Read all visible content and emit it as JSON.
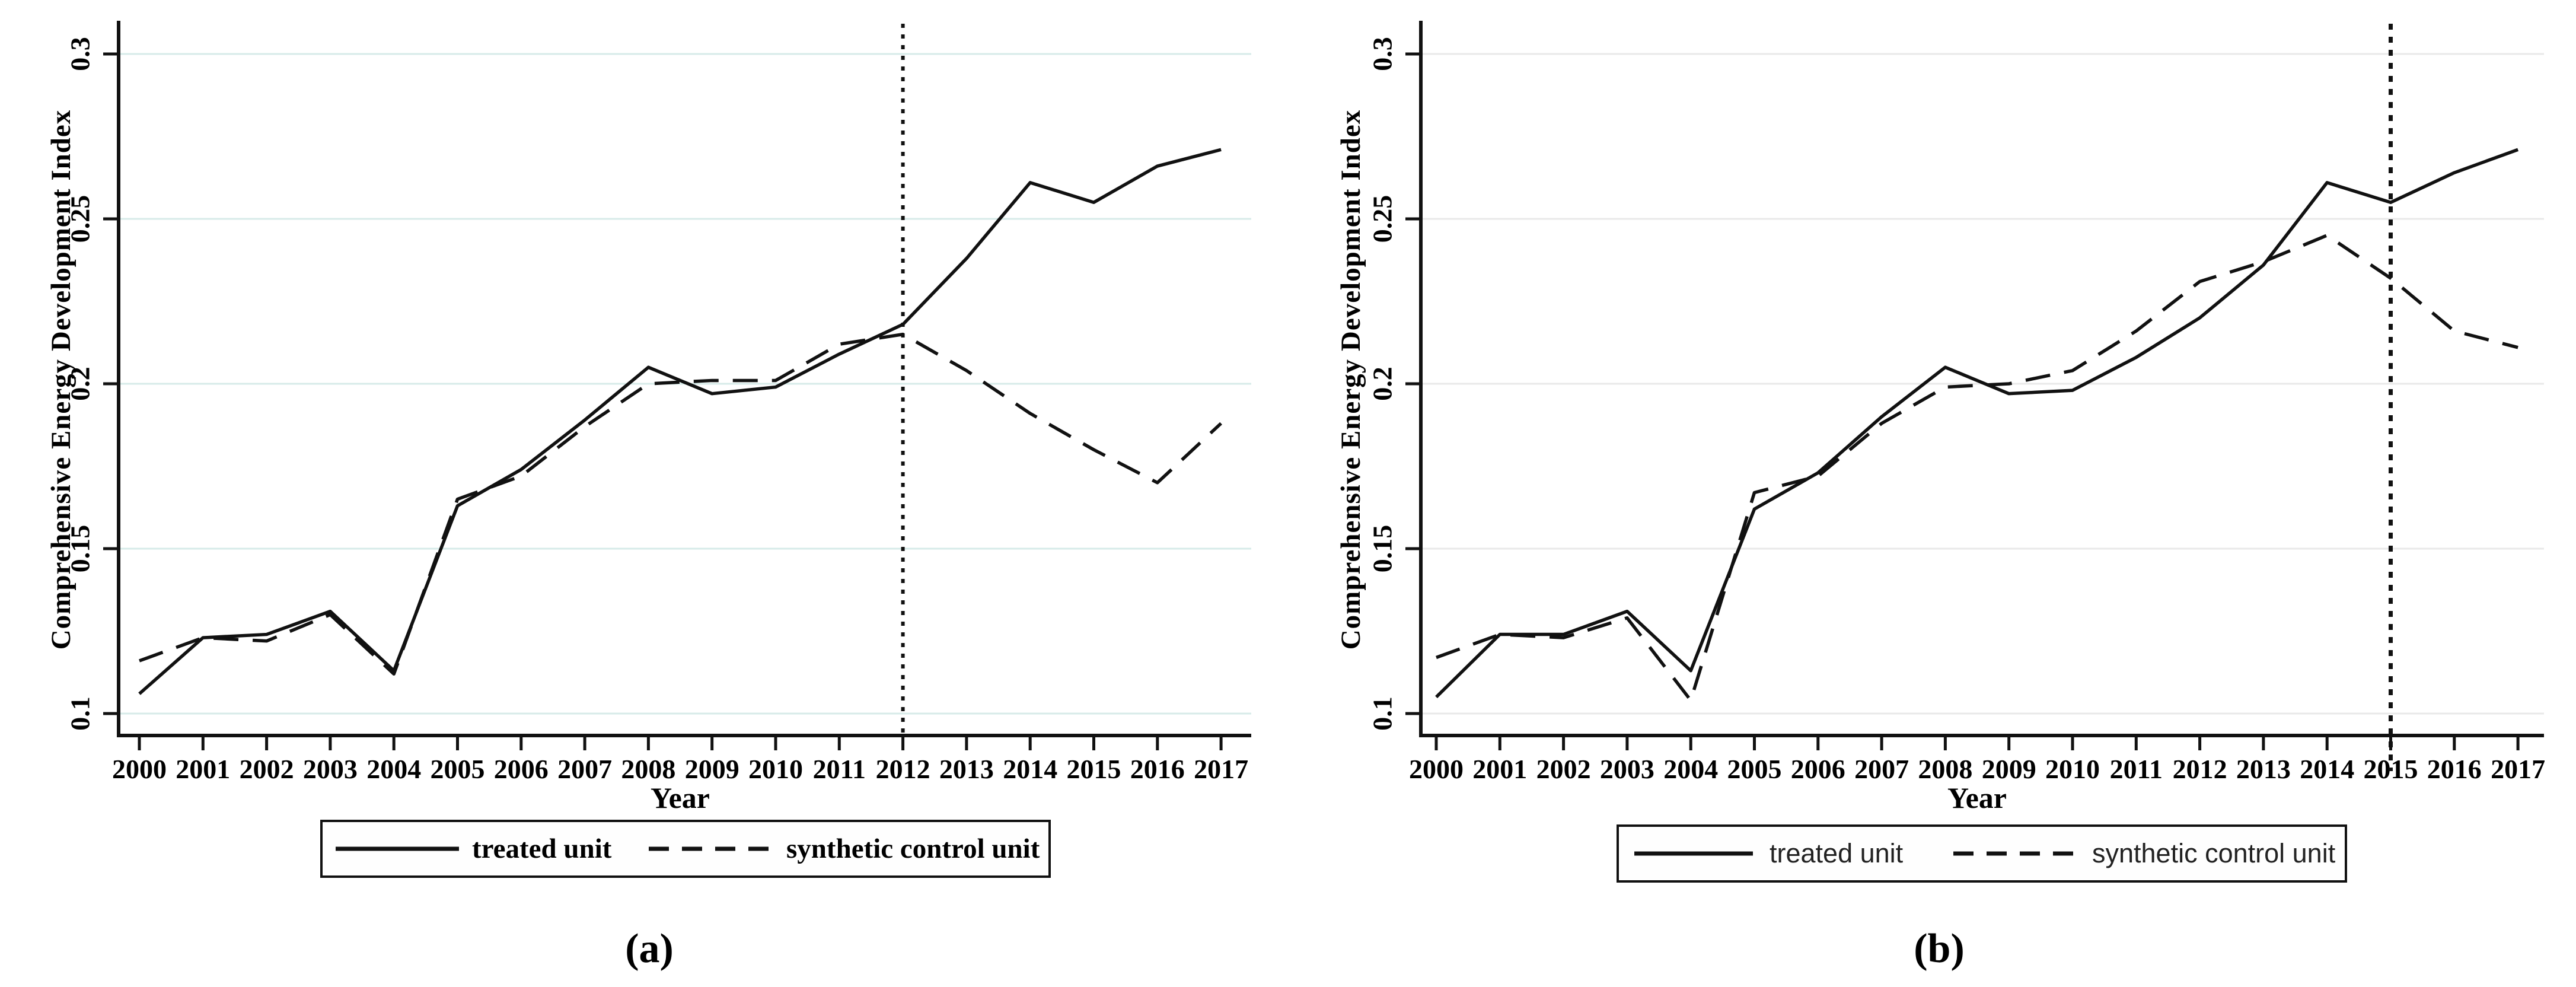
{
  "figure": {
    "panels": [
      {
        "caption": "(a)",
        "treatment_year": 2012,
        "legend": {
          "treated_label": "treated unit",
          "synthetic_label": "synthetic control unit"
        }
      },
      {
        "caption": "(b)",
        "treatment_year": 2015,
        "legend": {
          "treated_label": "treated unit",
          "synthetic_label": "synthetic control unit"
        }
      }
    ],
    "colors": {
      "line": "#111111",
      "grid_panel_a": "#d7ebe9",
      "grid_panel_b": "#e9e9e9",
      "axis": "#111111",
      "background": "#ffffff"
    }
  },
  "chart_data": [
    {
      "type": "line",
      "title": "",
      "xlabel": "Year",
      "ylabel": "Comprehensive Energy Development Index",
      "x": [
        2000,
        2001,
        2002,
        2003,
        2004,
        2005,
        2006,
        2007,
        2008,
        2009,
        2010,
        2011,
        2012,
        2013,
        2014,
        2015,
        2016,
        2017
      ],
      "xtick_labels": [
        "2000",
        "2001",
        "2002",
        "2003",
        "2004",
        "2005",
        "2006",
        "2007",
        "2008",
        "2009",
        "2010",
        "2011",
        "2012",
        "2013",
        "2014",
        "2015",
        "2016",
        "2017"
      ],
      "ylim": [
        0.1,
        0.3
      ],
      "yticks": {
        "values": [
          0.1,
          0.15,
          0.2,
          0.25,
          0.3
        ],
        "labels": [
          "0.1",
          "0.15",
          "0.2",
          "0.25",
          "0.3"
        ]
      },
      "grid": true,
      "legend_position": "bottom",
      "treatment_line_x": 2012,
      "series": [
        {
          "name": "treated unit",
          "style": "solid",
          "values": [
            0.106,
            0.123,
            0.124,
            0.131,
            0.113,
            0.163,
            0.174,
            0.189,
            0.205,
            0.197,
            0.199,
            0.209,
            0.218,
            0.238,
            0.261,
            0.255,
            0.266,
            0.271
          ]
        },
        {
          "name": "synthetic control unit",
          "style": "dashed",
          "values": [
            0.116,
            0.123,
            0.122,
            0.13,
            0.112,
            0.165,
            0.172,
            0.187,
            0.2,
            0.201,
            0.201,
            0.212,
            0.215,
            0.204,
            0.191,
            0.18,
            0.17,
            0.188
          ]
        }
      ]
    },
    {
      "type": "line",
      "title": "",
      "xlabel": "Year",
      "ylabel": "Comprehensive Energy Development Index",
      "x": [
        2000,
        2001,
        2002,
        2003,
        2004,
        2005,
        2006,
        2007,
        2008,
        2009,
        2010,
        2011,
        2012,
        2013,
        2014,
        2015,
        2016,
        2017
      ],
      "xtick_labels": [
        "2000",
        "2001",
        "2002",
        "2003",
        "2004",
        "2005",
        "2006",
        "2007",
        "2008",
        "2009",
        "2010",
        "2011",
        "2012",
        "2013",
        "2014",
        "2015",
        "2016",
        "2017"
      ],
      "ylim": [
        0.1,
        0.3
      ],
      "yticks": {
        "values": [
          0.1,
          0.15,
          0.2,
          0.25,
          0.3
        ],
        "labels": [
          "0.1",
          "0.15",
          "0.2",
          "0.25",
          "0.3"
        ]
      },
      "grid": true,
      "legend_position": "bottom",
      "treatment_line_x": 2015,
      "series": [
        {
          "name": "treated unit",
          "style": "solid",
          "values": [
            0.105,
            0.124,
            0.124,
            0.131,
            0.113,
            0.162,
            0.173,
            0.19,
            0.205,
            0.197,
            0.198,
            0.208,
            0.22,
            0.236,
            0.261,
            0.255,
            0.264,
            0.271
          ]
        },
        {
          "name": "synthetic control unit",
          "style": "dashed",
          "values": [
            0.117,
            0.124,
            0.123,
            0.129,
            0.104,
            0.167,
            0.172,
            0.188,
            0.199,
            0.2,
            0.204,
            0.216,
            0.231,
            0.237,
            0.245,
            0.232,
            0.216,
            0.211
          ]
        }
      ]
    }
  ]
}
